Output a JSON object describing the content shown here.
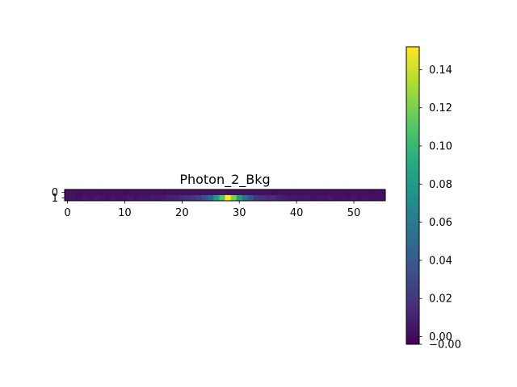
{
  "chart_data": {
    "type": "heatmap",
    "title": "Photon_2_Bkg",
    "colormap": "viridis",
    "x_ticks": [
      0,
      10,
      20,
      30,
      40,
      50
    ],
    "y_ticks": [
      0,
      1
    ],
    "columns": 56,
    "rows": 2,
    "values": [
      [
        0.002,
        0.003,
        0.001,
        0.002,
        0.003,
        0.002,
        0.001,
        0.002,
        0.003,
        0.002,
        0.001,
        0.002,
        0.003,
        0.002,
        0.002,
        0.003,
        0.002,
        0.001,
        0.002,
        0.003,
        0.002,
        0.002,
        0.003,
        0.002,
        0.003,
        0.002,
        0.003,
        0.004,
        0.003,
        0.003,
        0.002,
        0.003,
        0.002,
        0.002,
        0.003,
        0.002,
        0.001,
        0.002,
        0.003,
        0.002,
        0.001,
        0.002,
        0.003,
        0.002,
        0.002,
        0.001,
        0.002,
        0.003,
        0.002,
        0.001,
        0.002,
        0.003,
        0.002,
        0.001,
        0.002,
        0.003
      ],
      [
        0.003,
        0.004,
        0.002,
        0.005,
        0.003,
        0.006,
        0.004,
        0.002,
        0.005,
        0.003,
        0.004,
        0.006,
        0.003,
        0.005,
        0.004,
        0.007,
        0.005,
        0.008,
        0.01,
        0.012,
        0.015,
        0.018,
        0.02,
        0.025,
        0.035,
        0.05,
        0.08,
        0.11,
        0.152,
        0.12,
        0.085,
        0.055,
        0.035,
        0.022,
        0.018,
        0.014,
        0.016,
        0.01,
        0.008,
        0.006,
        0.005,
        0.004,
        0.006,
        0.003,
        0.005,
        0.004,
        0.006,
        0.003,
        0.004,
        0.002,
        0.005,
        0.003,
        0.004,
        0.002,
        0.003,
        0.004
      ]
    ],
    "colorbar": {
      "min": -0.004,
      "max": 0.152,
      "ticks": [
        0.14,
        0.12,
        0.1,
        0.08,
        0.06,
        0.04,
        0.02,
        0.0
      ],
      "tick_labels": [
        "0.14",
        "0.12",
        "0.10",
        "0.08",
        "0.06",
        "0.04",
        "0.02",
        "0.00",
        "−0.00"
      ],
      "bottom_tick": -0.004
    }
  }
}
